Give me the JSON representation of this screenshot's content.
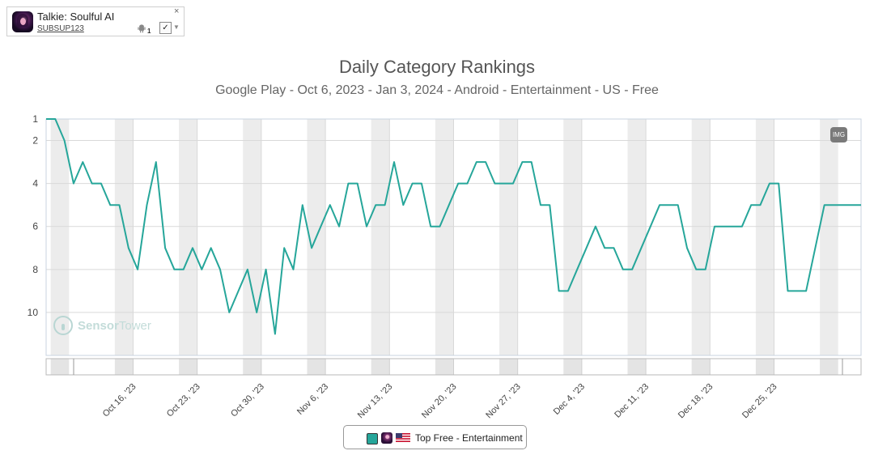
{
  "app": {
    "name": "Talkie: Soulful AI",
    "publisher": "SUBSUP123",
    "platform_icon": "android-icon",
    "platform_count": "1",
    "close_label": "×",
    "check_label": "✓",
    "caret_label": "▼"
  },
  "watermark": {
    "brand_a": "Sensor",
    "brand_b": "Tower"
  },
  "badge": {
    "label": "IMG"
  },
  "legend": {
    "label": "Top Free - Entertainment",
    "color": "#26a69a"
  },
  "colors": {
    "line": "#26a69a",
    "weekend_band": "#ececec",
    "grid": "#d9d9d9",
    "frame": "#c8d3e0"
  },
  "chart_data": {
    "type": "line",
    "title": "Daily Category Rankings",
    "subtitle": "Google Play - Oct 6, 2023 - Jan 3, 2024 - Android - Entertainment - US - Free",
    "x_start": "2023-10-06",
    "x_end": "2024-01-03",
    "y_reversed": true,
    "ylim": [
      1,
      12
    ],
    "y_ticks": [
      1,
      2,
      4,
      6,
      8,
      10
    ],
    "x_tick_labels": [
      "Oct 16, '23",
      "Oct 23, '23",
      "Oct 30, '23",
      "Nov 6, '23",
      "Nov 13, '23",
      "Nov 20, '23",
      "Nov 27, '23",
      "Dec 4, '23",
      "Dec 11, '23",
      "Dec 18, '23",
      "Dec 25, '23"
    ],
    "x_tick_dates": [
      "2023-10-16",
      "2023-10-23",
      "2023-10-30",
      "2023-11-06",
      "2023-11-13",
      "2023-11-20",
      "2023-11-27",
      "2023-12-04",
      "2023-12-11",
      "2023-12-18",
      "2023-12-25"
    ],
    "weekend_dates": [
      "2023-10-07",
      "2023-10-14",
      "2023-10-21",
      "2023-10-28",
      "2023-11-04",
      "2023-11-11",
      "2023-11-18",
      "2023-11-25",
      "2023-12-02",
      "2023-12-09",
      "2023-12-16",
      "2023-12-23",
      "2023-12-30"
    ],
    "grid": true,
    "legend_position": "bottom-center",
    "series": [
      {
        "name": "Top Free - Entertainment",
        "x": [
          "2023-10-06",
          "2023-10-07",
          "2023-10-08",
          "2023-10-09",
          "2023-10-10",
          "2023-10-11",
          "2023-10-12",
          "2023-10-13",
          "2023-10-14",
          "2023-10-15",
          "2023-10-16",
          "2023-10-17",
          "2023-10-18",
          "2023-10-19",
          "2023-10-20",
          "2023-10-21",
          "2023-10-22",
          "2023-10-23",
          "2023-10-24",
          "2023-10-25",
          "2023-10-26",
          "2023-10-27",
          "2023-10-28",
          "2023-10-29",
          "2023-10-30",
          "2023-10-31",
          "2023-11-01",
          "2023-11-02",
          "2023-11-03",
          "2023-11-04",
          "2023-11-05",
          "2023-11-06",
          "2023-11-07",
          "2023-11-08",
          "2023-11-09",
          "2023-11-10",
          "2023-11-11",
          "2023-11-12",
          "2023-11-13",
          "2023-11-14",
          "2023-11-15",
          "2023-11-16",
          "2023-11-17",
          "2023-11-18",
          "2023-11-19",
          "2023-11-20",
          "2023-11-21",
          "2023-11-22",
          "2023-11-23",
          "2023-11-24",
          "2023-11-25",
          "2023-11-26",
          "2023-11-27",
          "2023-11-28",
          "2023-11-29",
          "2023-11-30",
          "2023-12-01",
          "2023-12-02",
          "2023-12-03",
          "2023-12-04",
          "2023-12-05",
          "2023-12-06",
          "2023-12-07",
          "2023-12-08",
          "2023-12-09",
          "2023-12-10",
          "2023-12-11",
          "2023-12-12",
          "2023-12-13",
          "2023-12-14",
          "2023-12-15",
          "2023-12-16",
          "2023-12-17",
          "2023-12-18",
          "2023-12-19",
          "2023-12-20",
          "2023-12-21",
          "2023-12-22",
          "2023-12-23",
          "2023-12-24",
          "2023-12-25",
          "2023-12-26",
          "2023-12-27",
          "2023-12-28",
          "2023-12-29",
          "2023-12-30",
          "2023-12-31",
          "2024-01-01",
          "2024-01-02",
          "2024-01-03"
        ],
        "y": [
          1,
          1,
          2,
          4,
          3,
          4,
          4,
          5,
          5,
          7,
          8,
          5,
          3,
          7,
          8,
          8,
          7,
          8,
          7,
          8,
          10,
          9,
          8,
          10,
          8,
          11,
          7,
          8,
          5,
          7,
          6,
          5,
          6,
          4,
          4,
          6,
          5,
          5,
          3,
          5,
          4,
          4,
          6,
          6,
          5,
          4,
          4,
          3,
          3,
          4,
          4,
          4,
          3,
          3,
          5,
          5,
          9,
          9,
          8,
          7,
          6,
          7,
          7,
          8,
          8,
          7,
          6,
          5,
          5,
          5,
          7,
          8,
          8,
          6,
          6,
          6,
          6,
          5,
          5,
          4,
          4,
          9,
          9,
          9,
          7,
          5,
          5,
          5,
          5,
          5
        ]
      }
    ]
  }
}
